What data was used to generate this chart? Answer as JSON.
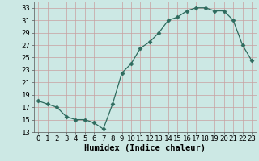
{
  "x": [
    0,
    1,
    2,
    3,
    4,
    5,
    6,
    7,
    8,
    9,
    10,
    11,
    12,
    13,
    14,
    15,
    16,
    17,
    18,
    19,
    20,
    21,
    22,
    23
  ],
  "y": [
    18,
    17.5,
    17,
    15.5,
    15,
    15,
    14.5,
    13.5,
    17.5,
    22.5,
    24,
    26.5,
    27.5,
    29,
    31,
    31.5,
    32.5,
    33,
    33,
    32.5,
    32.5,
    31,
    27,
    24.5
  ],
  "xlabel": "Humidex (Indice chaleur)",
  "xlim": [
    -0.5,
    23.5
  ],
  "ylim": [
    13,
    34
  ],
  "yticks": [
    13,
    15,
    17,
    19,
    21,
    23,
    25,
    27,
    29,
    31,
    33
  ],
  "xticks": [
    0,
    1,
    2,
    3,
    4,
    5,
    6,
    7,
    8,
    9,
    10,
    11,
    12,
    13,
    14,
    15,
    16,
    17,
    18,
    19,
    20,
    21,
    22,
    23
  ],
  "line_color": "#2e6b5e",
  "marker": "D",
  "marker_size": 2.5,
  "bg_color": "#cce8e4",
  "grid_color": "#c8a0a0",
  "xlabel_fontsize": 7.5,
  "tick_fontsize": 6.5
}
